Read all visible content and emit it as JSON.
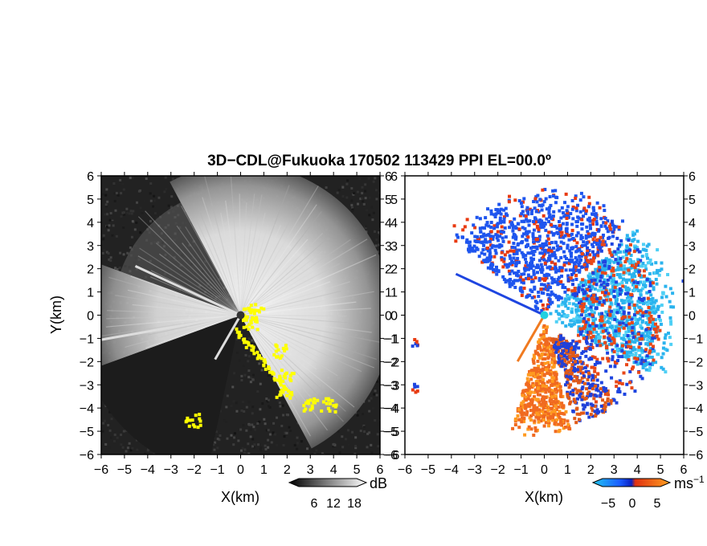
{
  "chart_data": [
    {
      "type": "heatmap",
      "panel": "reflectivity",
      "title": "3D−CDL@Fukuoka 170502 113429 PPI EL=00.0º",
      "xlabel": "X(km)",
      "ylabel": "Y(km)",
      "xlim": [
        -6,
        6
      ],
      "ylim": [
        -6,
        6
      ],
      "xticks": [
        "−6",
        "−5",
        "−4",
        "−3",
        "−2",
        "−1",
        "0",
        "1",
        "2",
        "3",
        "4",
        "5",
        "6"
      ],
      "yticks": [
        "6",
        "5",
        "4",
        "3",
        "2",
        "1",
        "0",
        "−1",
        "−2",
        "−3",
        "−4",
        "−5",
        "−6"
      ],
      "colorbar": {
        "ticks": [
          "6",
          "12",
          "18"
        ],
        "unit": "dB",
        "colors": [
          "#000000",
          "#ffffff"
        ]
      },
      "background_color": "#222222",
      "highlight_color": "#ffff00",
      "bright_sector": {
        "azimuth_range_deg": [
          -30,
          200
        ],
        "max_range_km": 6
      },
      "dark_wedges_deg": [
        [
          200,
          258
        ]
      ],
      "yellow_cluster_km": [
        [
          0.3,
          0.1
        ],
        [
          0.6,
          0.3
        ],
        [
          0.4,
          -0.3
        ],
        [
          1.6,
          -1.5
        ],
        [
          1.9,
          -2.5
        ],
        [
          1.8,
          -3.4
        ],
        [
          3.0,
          -3.8
        ],
        [
          3.7,
          -3.8
        ],
        [
          -2.1,
          -4.5
        ]
      ],
      "grid": false
    },
    {
      "type": "heatmap",
      "panel": "doppler_velocity",
      "xlabel": "X(km)",
      "xlim": [
        -6,
        6
      ],
      "ylim": [
        -6,
        6
      ],
      "xticks": [
        "−6",
        "−5",
        "−4",
        "−3",
        "−2",
        "−1",
        "0",
        "1",
        "2",
        "3",
        "4",
        "5",
        "6"
      ],
      "yticks": [
        "6",
        "5",
        "4",
        "3",
        "2",
        "1",
        "0",
        "−1",
        "−2",
        "−3",
        "−4",
        "−5",
        "−6"
      ],
      "colorbar": {
        "ticks": [
          "−5",
          "0",
          "5"
        ],
        "unit": "ms",
        "unit_exp": "−1",
        "colors": [
          "#22c6f0",
          "#1a5cff",
          "#0b20c0",
          "#e03010",
          "#ffa020"
        ]
      },
      "regions": [
        {
          "name": "cyan",
          "color": "#2ab3ee",
          "azimuth_range_deg": [
            -28,
            45
          ],
          "max_range_km": 5
        },
        {
          "name": "blue",
          "color": "#1e55ee",
          "azimuth_range_deg": [
            50,
            140
          ],
          "max_range_km": 5
        },
        {
          "name": "orange",
          "color": "#f06a20",
          "azimuth_range_deg": [
            253,
            282
          ],
          "max_range_km": 4.6
        }
      ],
      "grid": false
    }
  ]
}
